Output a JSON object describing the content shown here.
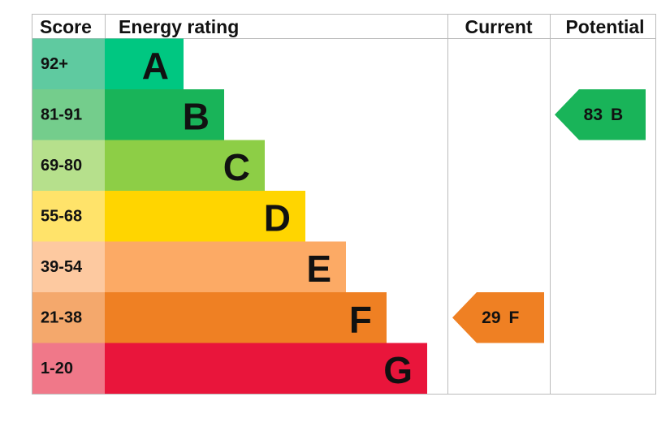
{
  "chart_data": {
    "type": "epc",
    "headers": [
      "Score",
      "Energy rating",
      "Current",
      "Potential"
    ],
    "bands": [
      {
        "score": "92+",
        "letter": "A",
        "color": "#00c781",
        "score_color": "#5fcaa0"
      },
      {
        "score": "81-91",
        "letter": "B",
        "color": "#19b459",
        "score_color": "#74cd8c"
      },
      {
        "score": "69-80",
        "letter": "C",
        "color": "#8dce46",
        "score_color": "#b6e08c"
      },
      {
        "score": "55-68",
        "letter": "D",
        "color": "#ffd500",
        "score_color": "#ffe36a"
      },
      {
        "score": "39-54",
        "letter": "E",
        "color": "#fcaa65",
        "score_color": "#fdc9a0"
      },
      {
        "score": "21-38",
        "letter": "F",
        "color": "#ef8023",
        "score_color": "#f4a86c"
      },
      {
        "score": "1-20",
        "letter": "G",
        "color": "#e9153b",
        "score_color": "#f07889"
      }
    ],
    "current": {
      "value": 29,
      "letter": "F",
      "color": "#ef8023"
    },
    "potential": {
      "value": 83,
      "letter": "B",
      "color": "#19b459"
    }
  }
}
